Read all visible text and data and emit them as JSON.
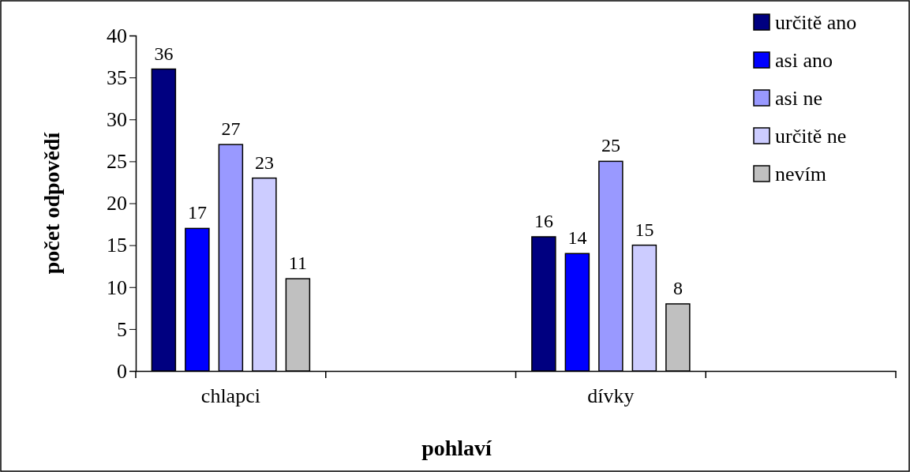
{
  "chart_data": {
    "type": "bar",
    "xlabel": "pohlaví",
    "ylabel": "počet odpovědí",
    "categories": [
      "chlapci",
      null,
      "dívky",
      null
    ],
    "series": [
      {
        "name": "určitě ano",
        "color": "#000080",
        "values": [
          36,
          null,
          16,
          null
        ]
      },
      {
        "name": "asi ano",
        "color": "#0000ff",
        "values": [
          17,
          null,
          14,
          null
        ]
      },
      {
        "name": "asi ne",
        "color": "#9999ff",
        "values": [
          27,
          null,
          25,
          null
        ]
      },
      {
        "name": "určitě ne",
        "color": "#ccccff",
        "values": [
          23,
          null,
          15,
          null
        ]
      },
      {
        "name": "nevím",
        "color": "#c0c0c0",
        "values": [
          11,
          null,
          8,
          null
        ]
      }
    ],
    "ylim": [
      0,
      40
    ],
    "yticks": [
      0,
      5,
      10,
      15,
      20,
      25,
      30,
      35,
      40
    ],
    "data_labels": true,
    "legend": "top right",
    "grid": false
  }
}
